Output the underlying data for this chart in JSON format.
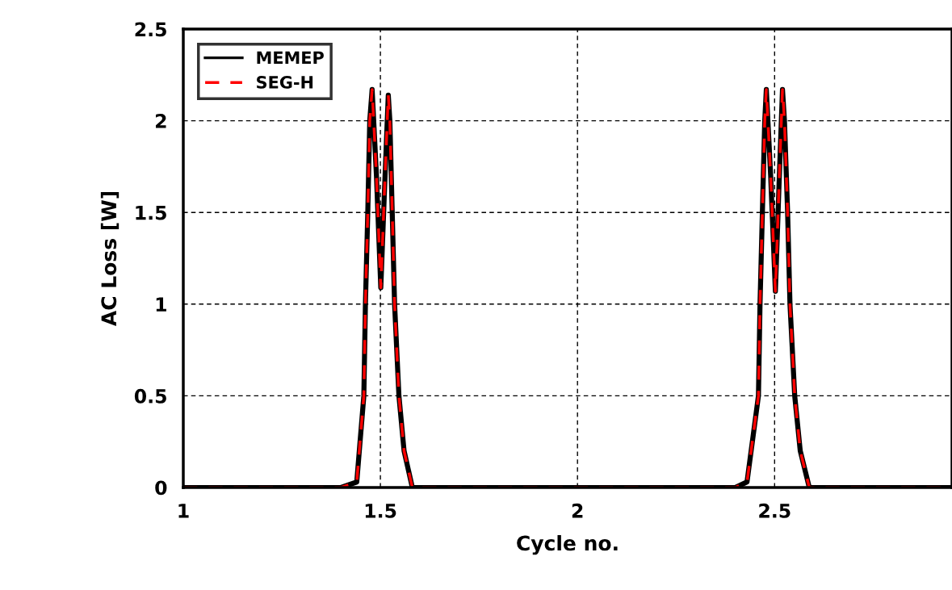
{
  "chart_data": {
    "type": "line",
    "xlabel": "Cycle no.",
    "ylabel": "AC Loss [W]",
    "xlim": [
      1,
      2.95
    ],
    "xticks": [
      1,
      1.5,
      2,
      2.5
    ],
    "ylim": [
      0,
      2.5
    ],
    "yticks": [
      0,
      0.5,
      1,
      1.5,
      2,
      2.5
    ],
    "grid": true,
    "legend": "top left",
    "series": [
      {
        "name": "MEMEP",
        "color": "#000000",
        "line_style": "solid",
        "x": [
          1,
          1.4,
          1.44,
          1.458,
          1.462,
          1.468,
          1.473,
          1.479,
          1.49,
          1.501,
          1.51,
          1.52,
          1.524,
          1.53,
          1.536,
          1.547,
          1.56,
          1.581,
          1.6,
          2,
          2.4,
          2.43,
          2.459,
          2.463,
          2.469,
          2.475,
          2.479,
          2.49,
          2.502,
          2.512,
          2.52,
          2.525,
          2.533,
          2.539,
          2.551,
          2.565,
          2.588,
          2.62,
          2.95
        ],
        "values": [
          0,
          0,
          0.03,
          0.5,
          1,
          1.5,
          2,
          2.17,
          1.7,
          1.09,
          1.6,
          2.14,
          2,
          1.5,
          1,
          0.5,
          0.2,
          0,
          0,
          0,
          0,
          0.03,
          0.5,
          1,
          1.5,
          2,
          2.17,
          1.7,
          1.07,
          1.7,
          2.17,
          2,
          1.5,
          1,
          0.5,
          0.2,
          0,
          0,
          0
        ]
      },
      {
        "name": "SEG-H",
        "color": "#ff0000",
        "line_style": "dashed",
        "x": [
          1,
          1.4,
          1.44,
          1.458,
          1.462,
          1.468,
          1.473,
          1.479,
          1.49,
          1.501,
          1.51,
          1.52,
          1.524,
          1.53,
          1.536,
          1.547,
          1.56,
          1.581,
          1.6,
          2,
          2.4,
          2.43,
          2.459,
          2.463,
          2.469,
          2.475,
          2.479,
          2.49,
          2.502,
          2.512,
          2.52,
          2.525,
          2.533,
          2.539,
          2.551,
          2.565,
          2.588,
          2.62,
          2.95
        ],
        "values": [
          0,
          0,
          0.03,
          0.5,
          1,
          1.5,
          2,
          2.17,
          1.7,
          1.09,
          1.6,
          2.14,
          2,
          1.5,
          1,
          0.5,
          0.2,
          0,
          0,
          0,
          0,
          0.03,
          0.5,
          1,
          1.5,
          2,
          2.17,
          1.7,
          1.07,
          1.7,
          2.17,
          2,
          1.5,
          1,
          0.5,
          0.2,
          0,
          0,
          0
        ]
      }
    ]
  }
}
